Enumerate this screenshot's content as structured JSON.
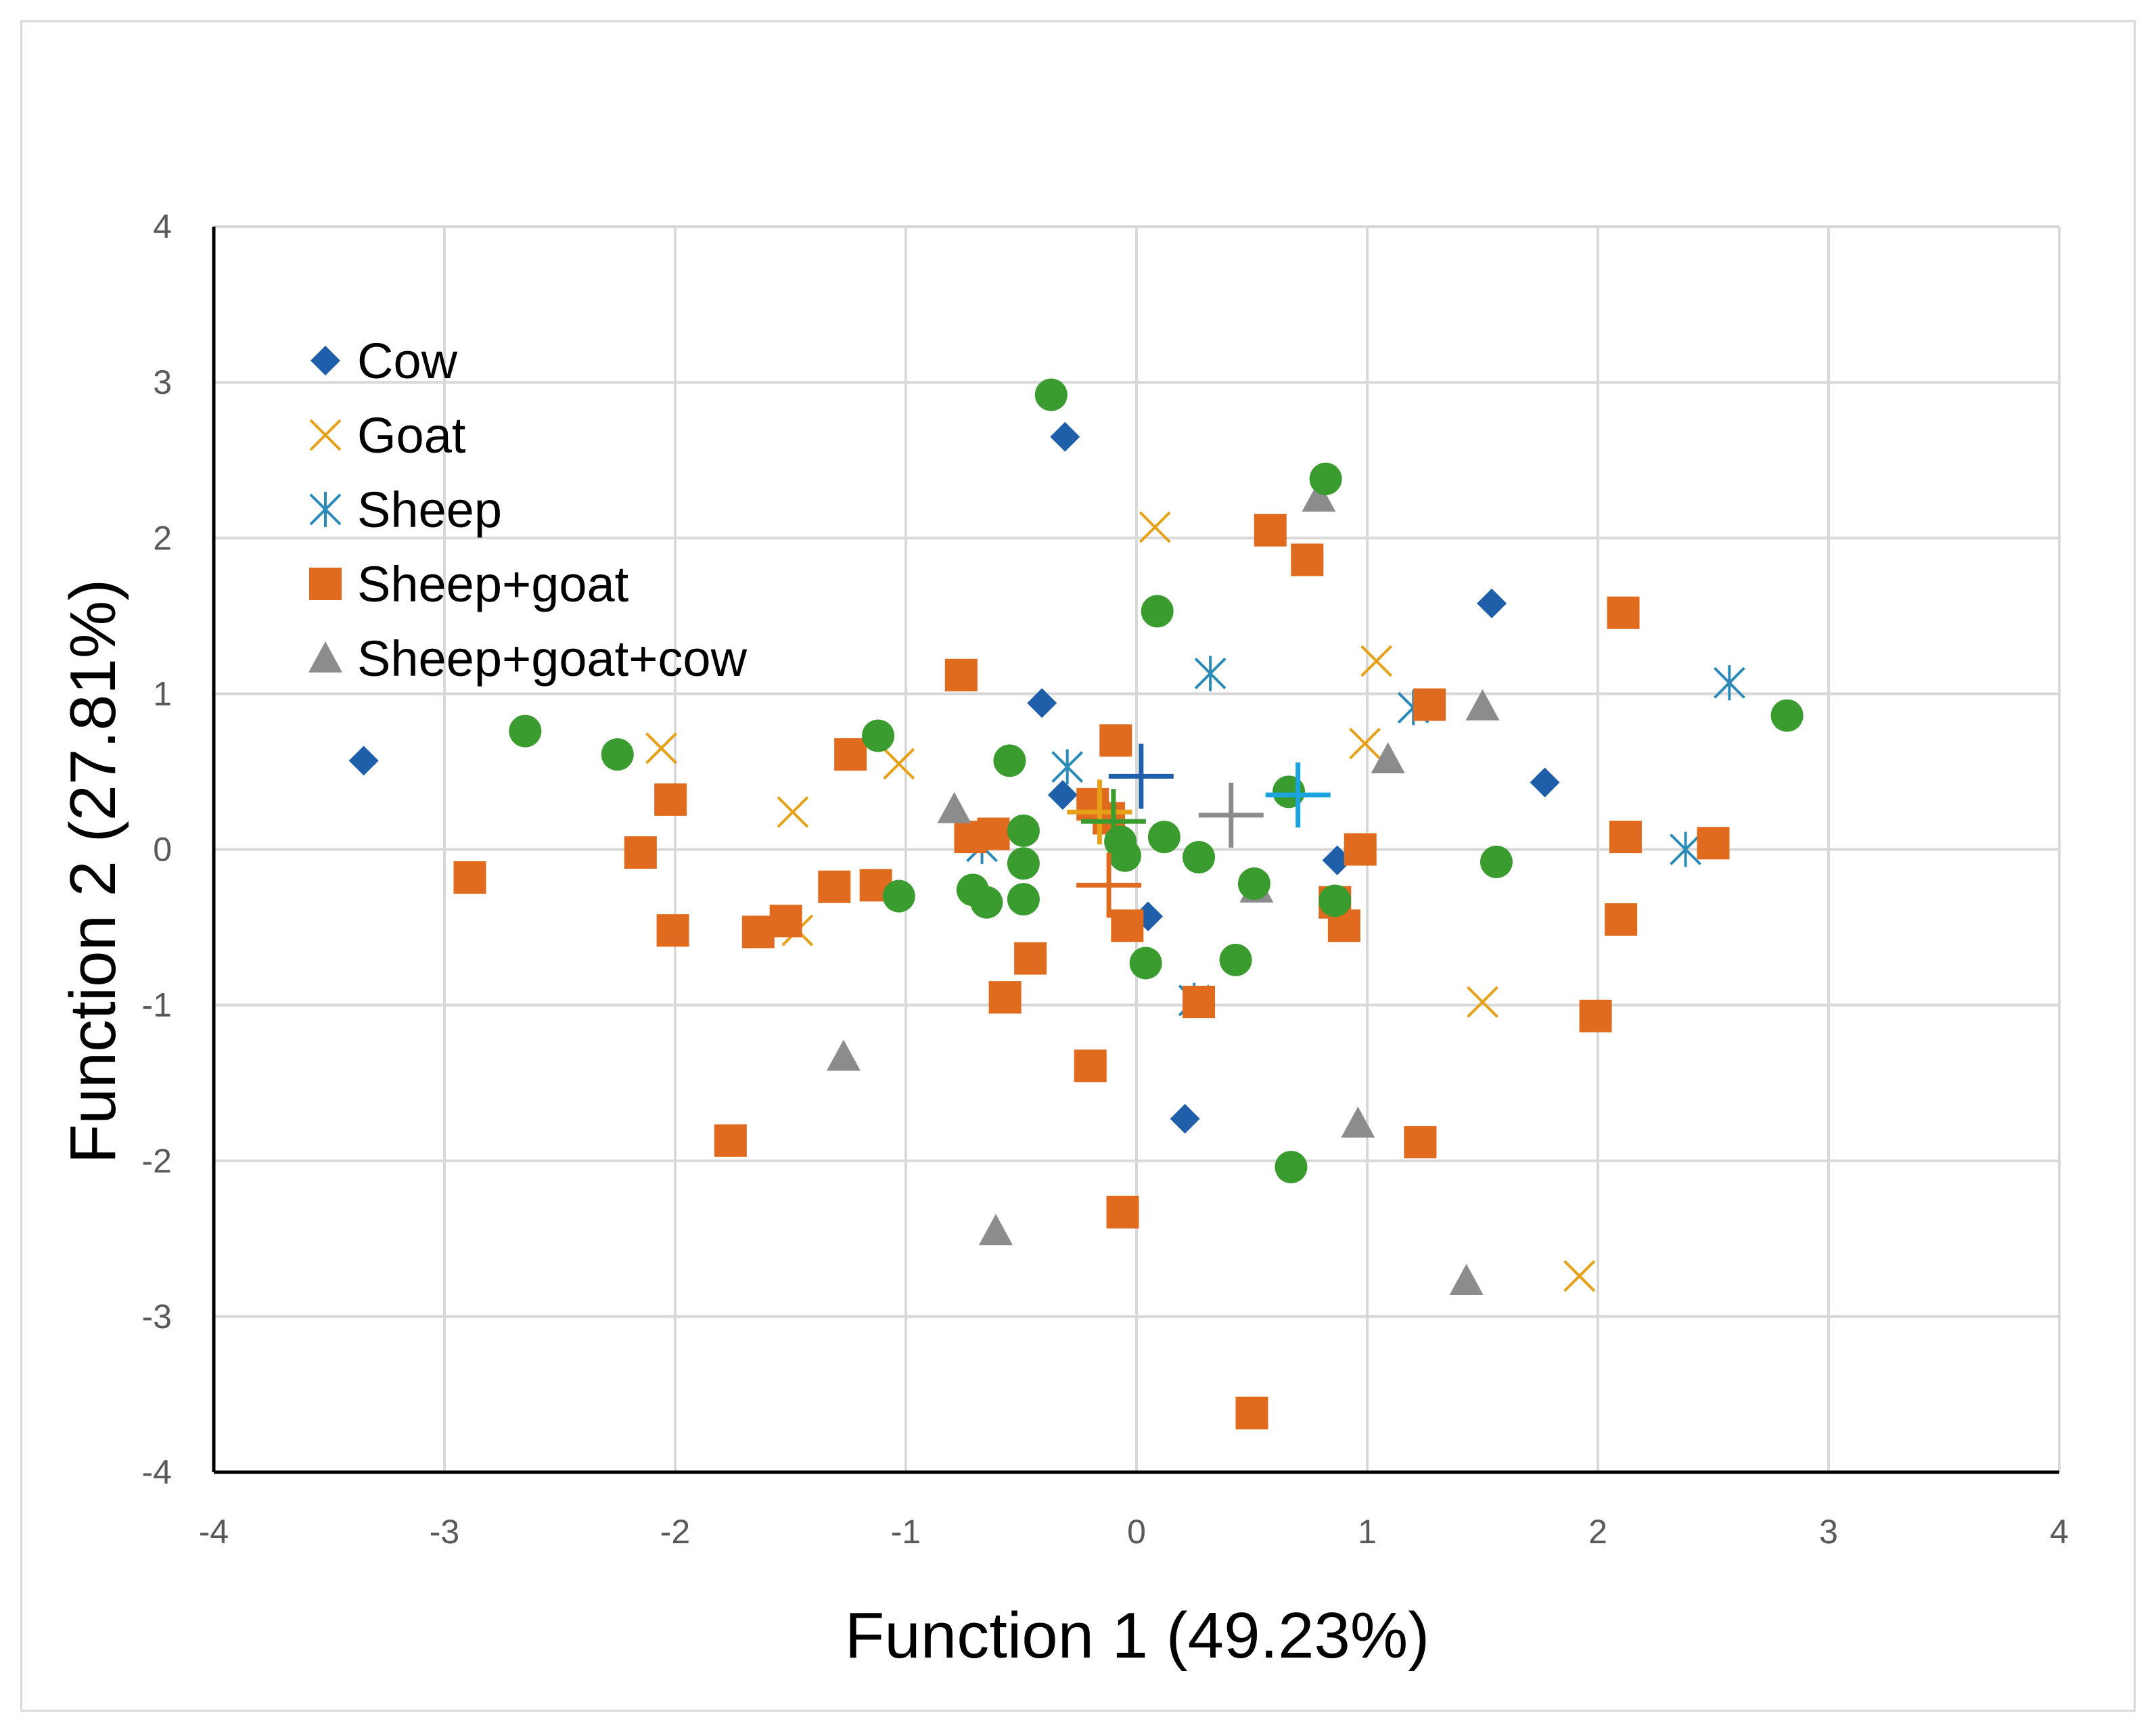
{
  "chart_data": {
    "type": "scatter",
    "title": "",
    "xlabel": "Function 1 (49.23%)",
    "ylabel": "Function 2 (27.81%)",
    "xlim": [
      -4,
      4
    ],
    "ylim": [
      -4,
      4
    ],
    "x_ticks": [
      "-4",
      "-3",
      "-2",
      "-1",
      "0",
      "1",
      "2",
      "3",
      "4"
    ],
    "y_ticks": [
      "4",
      "3",
      "2",
      "1",
      "0",
      "-1",
      "-2",
      "-3",
      "-4"
    ],
    "grid": true,
    "legend_position": "top-left",
    "series": [
      {
        "name": "Cow",
        "marker": "diamond",
        "color": "#1f5ea8",
        "x": [
          -3.35,
          -0.31,
          -0.41,
          -0.32,
          1.54,
          1.77,
          0.87,
          0.05,
          0.21
        ],
        "y": [
          0.57,
          2.65,
          0.94,
          0.35,
          1.58,
          0.43,
          -0.07,
          -0.43,
          -1.73
        ],
        "centroid": [
          0.02,
          0.47
        ]
      },
      {
        "name": "Goat",
        "marker": "x",
        "color": "#e6a118",
        "x": [
          0.08,
          1.04,
          0.99,
          -2.06,
          -1.03,
          -1.49,
          -1.47,
          1.5,
          1.92
        ],
        "y": [
          2.07,
          1.21,
          0.68,
          0.65,
          0.55,
          0.24,
          -0.52,
          -0.98,
          -2.74
        ],
        "centroid": [
          -0.16,
          0.24
        ]
      },
      {
        "name": "Sheep",
        "marker": "asterisk",
        "color": "#2c8ab8",
        "x": [
          0.32,
          -0.3,
          1.2,
          2.57,
          2.38,
          -0.67,
          0.25
        ],
        "y": [
          1.13,
          0.53,
          0.91,
          1.07,
          0.0,
          0.02,
          -0.97
        ],
        "centroid": [
          0.7,
          0.35
        ]
      },
      {
        "name": "Sheep+goat",
        "marker": "square",
        "color": "#e06b1f",
        "x": [
          0.58,
          0.74,
          2.11,
          -0.76,
          -0.09,
          -1.24,
          -2.02,
          -2.15,
          -2.89,
          -2.01,
          -1.64,
          -1.52,
          -1.31,
          -1.13,
          -0.72,
          -0.62,
          -0.19,
          -0.12,
          0.97,
          0.86,
          0.9,
          1.27,
          2.12,
          2.5,
          2.1,
          1.99,
          -0.57,
          -0.46,
          -0.04,
          0.27,
          -0.2,
          -1.76,
          1.23,
          -0.06,
          0.5
        ],
        "y": [
          2.05,
          1.86,
          1.52,
          1.12,
          0.7,
          0.61,
          0.32,
          -0.02,
          -0.18,
          -0.52,
          -0.53,
          -0.46,
          -0.24,
          -0.23,
          0.08,
          0.1,
          0.29,
          0.2,
          0.0,
          -0.34,
          -0.49,
          0.93,
          0.08,
          0.04,
          -0.45,
          -1.07,
          -0.95,
          -0.7,
          -0.49,
          -0.98,
          -1.39,
          -1.87,
          -1.88,
          -2.33,
          -3.62
        ],
        "centroid": [
          -0.12,
          -0.23
        ]
      },
      {
        "name": "Sheep+goat+cow",
        "marker": "triangle",
        "color": "#8c8c8c",
        "x": [
          0.79,
          1.5,
          1.09,
          -0.79,
          0.52,
          -1.27,
          0.96,
          -0.61,
          1.43
        ],
        "y": [
          2.26,
          0.92,
          0.58,
          0.26,
          -0.25,
          -1.33,
          -1.76,
          -2.45,
          -2.77
        ],
        "centroid": [
          0.41,
          0.22
        ]
      },
      {
        "name": "",
        "marker": "circle",
        "color": "#3a9b2f",
        "x": [
          -0.37,
          0.82,
          0.09,
          -2.65,
          -2.25,
          -1.12,
          -0.55,
          -0.49,
          -0.49,
          -0.71,
          -0.65,
          -0.49,
          -1.03,
          -0.07,
          0.12,
          0.27,
          0.51,
          0.66,
          0.86,
          1.56,
          2.82,
          0.04,
          0.43,
          0.67,
          -0.05
        ],
        "y": [
          2.92,
          2.38,
          1.53,
          0.76,
          0.61,
          0.73,
          0.57,
          0.12,
          -0.09,
          -0.26,
          -0.34,
          -0.32,
          -0.3,
          0.05,
          0.08,
          -0.05,
          -0.22,
          0.37,
          -0.33,
          -0.08,
          0.86,
          -0.73,
          -0.71,
          -2.04,
          -0.04
        ],
        "centroid": [
          -0.1,
          0.18
        ]
      }
    ]
  }
}
